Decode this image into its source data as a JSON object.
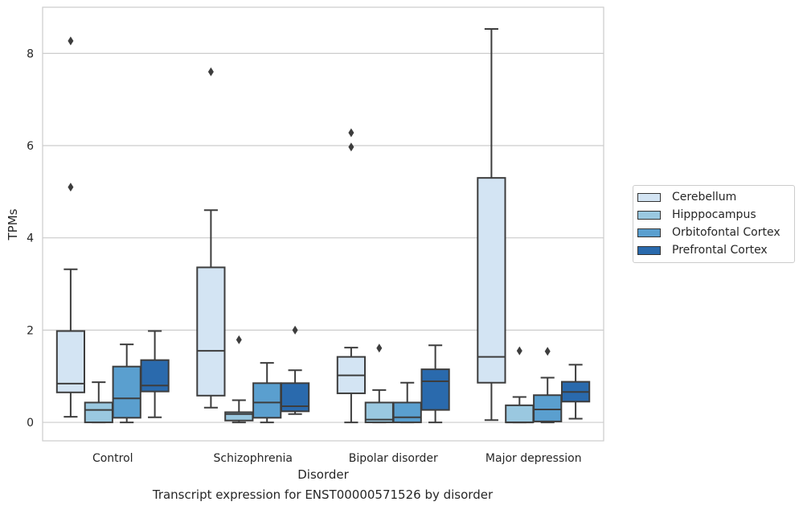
{
  "chart_data": {
    "type": "box",
    "caption": "Transcript expression for ENST00000571526 by disorder",
    "xlabel": "Disorder",
    "ylabel": "TPMs",
    "ylim": [
      -0.4,
      9.0
    ],
    "yticks": [
      0,
      2,
      4,
      6,
      8
    ],
    "ytick_labels": [
      "0",
      "2",
      "4",
      "6",
      "8"
    ],
    "grid": "horizontal",
    "legend_position": "right",
    "categories": [
      "Control",
      "Schizophrenia",
      "Bipolar disorder",
      "Major depression"
    ],
    "series": [
      {
        "name": "Cerebellum",
        "color": "#d3e4f3",
        "boxes": [
          {
            "whisker_low": 0.12,
            "q1": 0.65,
            "median": 0.84,
            "q3": 1.98,
            "whisker_high": 3.32,
            "outliers": [
              5.1,
              8.27
            ]
          },
          {
            "whisker_low": 0.32,
            "q1": 0.58,
            "median": 1.55,
            "q3": 3.36,
            "whisker_high": 4.6,
            "outliers": [
              7.6
            ]
          },
          {
            "whisker_low": 0.0,
            "q1": 0.63,
            "median": 1.02,
            "q3": 1.42,
            "whisker_high": 1.62,
            "outliers": [
              5.97,
              6.28
            ]
          },
          {
            "whisker_low": 0.05,
            "q1": 0.86,
            "median": 1.42,
            "q3": 5.3,
            "whisker_high": 8.53,
            "outliers": []
          }
        ]
      },
      {
        "name": "Hipppocampus",
        "color": "#9ac8e0",
        "boxes": [
          {
            "whisker_low": 0.0,
            "q1": 0.0,
            "median": 0.27,
            "q3": 0.43,
            "whisker_high": 0.87,
            "outliers": []
          },
          {
            "whisker_low": 0.0,
            "q1": 0.04,
            "median": 0.18,
            "q3": 0.22,
            "whisker_high": 0.48,
            "outliers": [
              1.79
            ]
          },
          {
            "whisker_low": 0.0,
            "q1": 0.0,
            "median": 0.06,
            "q3": 0.43,
            "whisker_high": 0.7,
            "outliers": [
              1.61
            ]
          },
          {
            "whisker_low": 0.0,
            "q1": 0.0,
            "median": 0.0,
            "q3": 0.37,
            "whisker_high": 0.55,
            "outliers": [
              1.55
            ]
          }
        ]
      },
      {
        "name": "Orbitofontal Cortex",
        "color": "#5a9fcf",
        "boxes": [
          {
            "whisker_low": 0.0,
            "q1": 0.1,
            "median": 0.52,
            "q3": 1.21,
            "whisker_high": 1.69,
            "outliers": []
          },
          {
            "whisker_low": 0.0,
            "q1": 0.1,
            "median": 0.43,
            "q3": 0.85,
            "whisker_high": 1.29,
            "outliers": []
          },
          {
            "whisker_low": 0.0,
            "q1": 0.0,
            "median": 0.11,
            "q3": 0.43,
            "whisker_high": 0.86,
            "outliers": []
          },
          {
            "whisker_low": 0.0,
            "q1": 0.02,
            "median": 0.28,
            "q3": 0.59,
            "whisker_high": 0.97,
            "outliers": [
              1.54
            ]
          }
        ]
      },
      {
        "name": "Prefrontal Cortex",
        "color": "#2a6aad",
        "boxes": [
          {
            "whisker_low": 0.11,
            "q1": 0.67,
            "median": 0.8,
            "q3": 1.35,
            "whisker_high": 1.98,
            "outliers": []
          },
          {
            "whisker_low": 0.18,
            "q1": 0.24,
            "median": 0.35,
            "q3": 0.85,
            "whisker_high": 1.13,
            "outliers": [
              2.0
            ]
          },
          {
            "whisker_low": 0.0,
            "q1": 0.27,
            "median": 0.89,
            "q3": 1.15,
            "whisker_high": 1.67,
            "outliers": []
          },
          {
            "whisker_low": 0.08,
            "q1": 0.45,
            "median": 0.66,
            "q3": 0.88,
            "whisker_high": 1.25,
            "outliers": []
          }
        ]
      }
    ]
  }
}
